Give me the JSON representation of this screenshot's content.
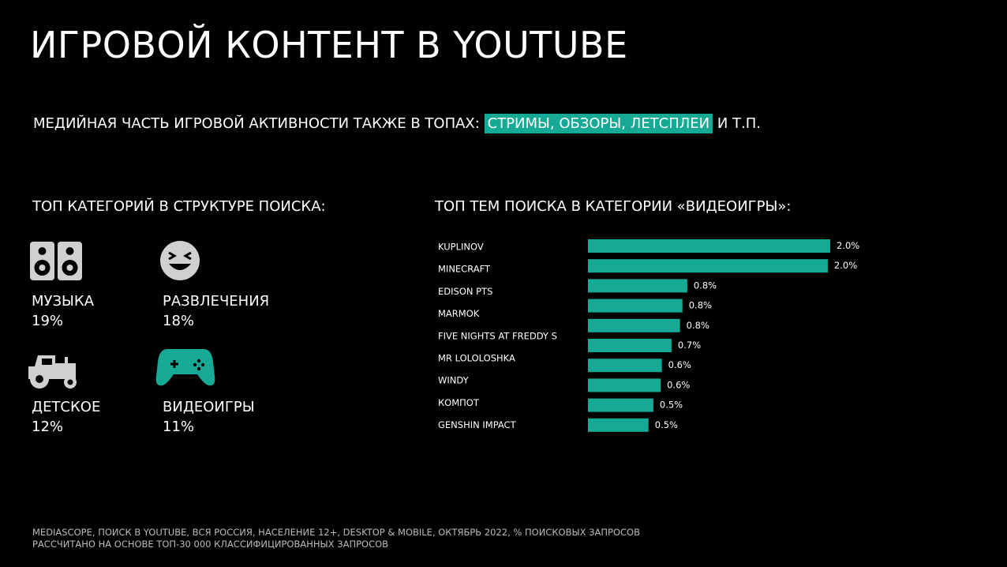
{
  "header": {
    "title": "ИГРОВОЙ КОНТЕНТ В YOUTUBE",
    "subtitle": {
      "before": "МЕДИЙНАЯ ЧАСТЬ ИГРОВОЙ АКТИВНОСТИ ТАКЖЕ В ТОПАХ:",
      "highlight": "СТРИМЫ, ОБЗОРЫ, ЛЕТСПЛЕИ",
      "after": "И Т.П."
    }
  },
  "categories_panel": {
    "heading": "ТОП КАТЕГОРИЙ В СТРУКТУРЕ ПОИСКА:",
    "items": [
      {
        "name": "МУЗЫКА",
        "share": "19%"
      },
      {
        "name": "РАЗВЛЕЧЕНИЯ",
        "share": "18%"
      },
      {
        "name": "ДЕТСКОЕ",
        "share": "12%"
      },
      {
        "name": "ВИДЕОИГРЫ",
        "share": "11%"
      }
    ]
  },
  "chart_data": {
    "type": "bar",
    "title": "ТОП ТЕМ ПОИСКА В КАТЕГОРИИ «ВИДЕОИГРЫ»:",
    "categories": [
      "KUPLINOV",
      "MINECRAFT",
      "EDISON PTS",
      "MARMOK",
      "FIVE NIGHTS AT FREDDY S",
      "MR LOLOLOSHKA",
      "WINDY",
      "КОМПОТ",
      "GENSHIN IMPACT",
      null
    ],
    "values": [
      2.0,
      1.98,
      0.82,
      0.78,
      0.76,
      0.69,
      0.61,
      0.6,
      0.54,
      0.5
    ],
    "value_labels": [
      "2.0%",
      "2.0%",
      "0.8%",
      "0.8%",
      "0.8%",
      "0.7%",
      "0.6%",
      "0.6%",
      "0.5%",
      "0.5%"
    ],
    "color": "#15a996",
    "xlim": [
      0,
      2.0
    ]
  },
  "footer": {
    "lines": [
      "MEDIASCOPE, ПОИСК В YOUTUBE, ВСЯ РОССИЯ, НАСЕЛЕНИЕ 12+, DESKTOP & MOBILE, ОКТЯБРЬ 2022, % ПОИСКОВЫХ ЗАПРОСОВ",
      "РАССЧИТАНО НА ОСНОВЕ ТОП-30 000 КЛАССИФИЦИРОВАННЫХ ЗАПРОСОВ"
    ]
  }
}
